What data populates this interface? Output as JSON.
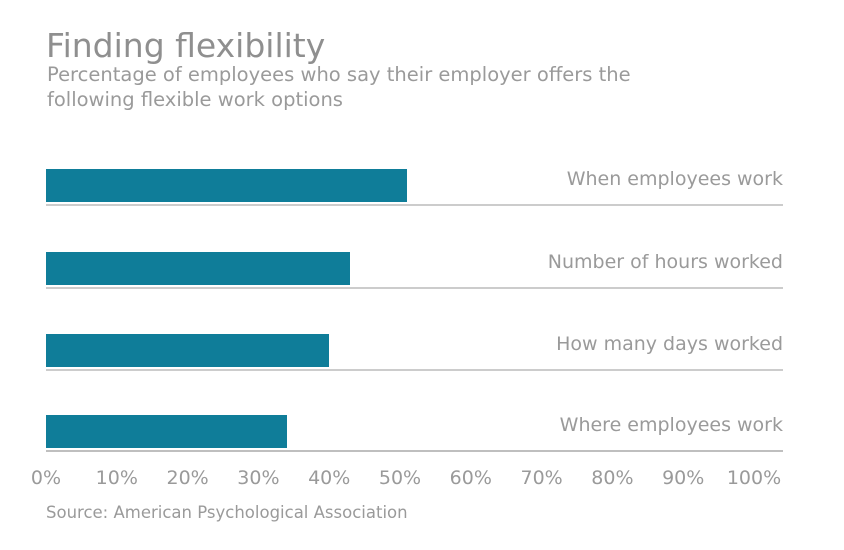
{
  "header": {
    "title": "Finding flexibility",
    "subtitle_lines": [
      "Percentage of employees who say their employer offers the",
      "following flexible work options"
    ]
  },
  "chart_data": {
    "type": "bar",
    "orientation": "horizontal",
    "title": "Finding flexibility",
    "subtitle": "Percentage of employees who say their employer offers the following flexible work options",
    "categories": [
      "When employees work",
      "Number of hours worked",
      "How many days worked",
      "Where employees work"
    ],
    "values": [
      51,
      43,
      40,
      34
    ],
    "unit": "%",
    "xlim": [
      0,
      100
    ],
    "x_tick_labels": [
      "0%",
      "10%",
      "20%",
      "30%",
      "40%",
      "50%",
      "60%",
      "70%",
      "80%",
      "90%",
      "100%"
    ],
    "grid": false,
    "legend": false,
    "bar_color": "#0f7d99",
    "text_color": "#9a9a9a"
  },
  "footer": {
    "source": "Source: American Psychological Association"
  }
}
